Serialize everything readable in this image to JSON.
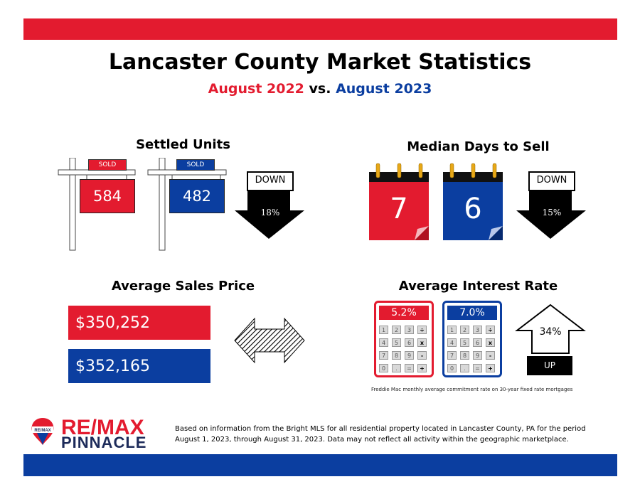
{
  "header": {
    "title": "Lancaster County Market Statistics",
    "subtitle_year1": "August 2022",
    "subtitle_vs": "vs.",
    "subtitle_year2": "August 2023"
  },
  "settled_units": {
    "heading": "Settled Units",
    "sign_label": "SOLD",
    "value_2022": "584",
    "value_2023": "482",
    "trend": "DOWN",
    "change": "18%"
  },
  "median_days": {
    "heading": "Median Days to Sell",
    "value_2022": "7",
    "value_2023": "6",
    "trend": "DOWN",
    "change": "15%"
  },
  "avg_price": {
    "heading": "Average Sales Price",
    "value_2022": "$350,252",
    "value_2023": "$352,165"
  },
  "interest_rate": {
    "heading": "Average Interest Rate",
    "value_2022": "5.2%",
    "value_2023": "7.0%",
    "trend": "UP",
    "change": "34%",
    "note": "Freddie Mac monthly average commitment rate on 30-year fixed rate mortgages",
    "keys": [
      "1",
      "2",
      "3",
      "÷",
      "4",
      "5",
      "6",
      "x",
      "7",
      "8",
      "9",
      "-",
      "0",
      ".",
      "=",
      "+"
    ]
  },
  "footer": {
    "logo_text": "RE/MAX",
    "logo_sub": "PINNACLE",
    "balloon_text": "RE/MAX",
    "disclaimer_line1": "Based on information from the Bright MLS for all residential property located in Lancaster County, PA for the period",
    "disclaimer_line2": "August 1, 2023, through August 31, 2023.  Data may not reflect all activity within the geographic marketplace."
  },
  "colors": {
    "red": "#e31b2f",
    "blue": "#0b3ea0",
    "navy": "#1d2b5a"
  }
}
